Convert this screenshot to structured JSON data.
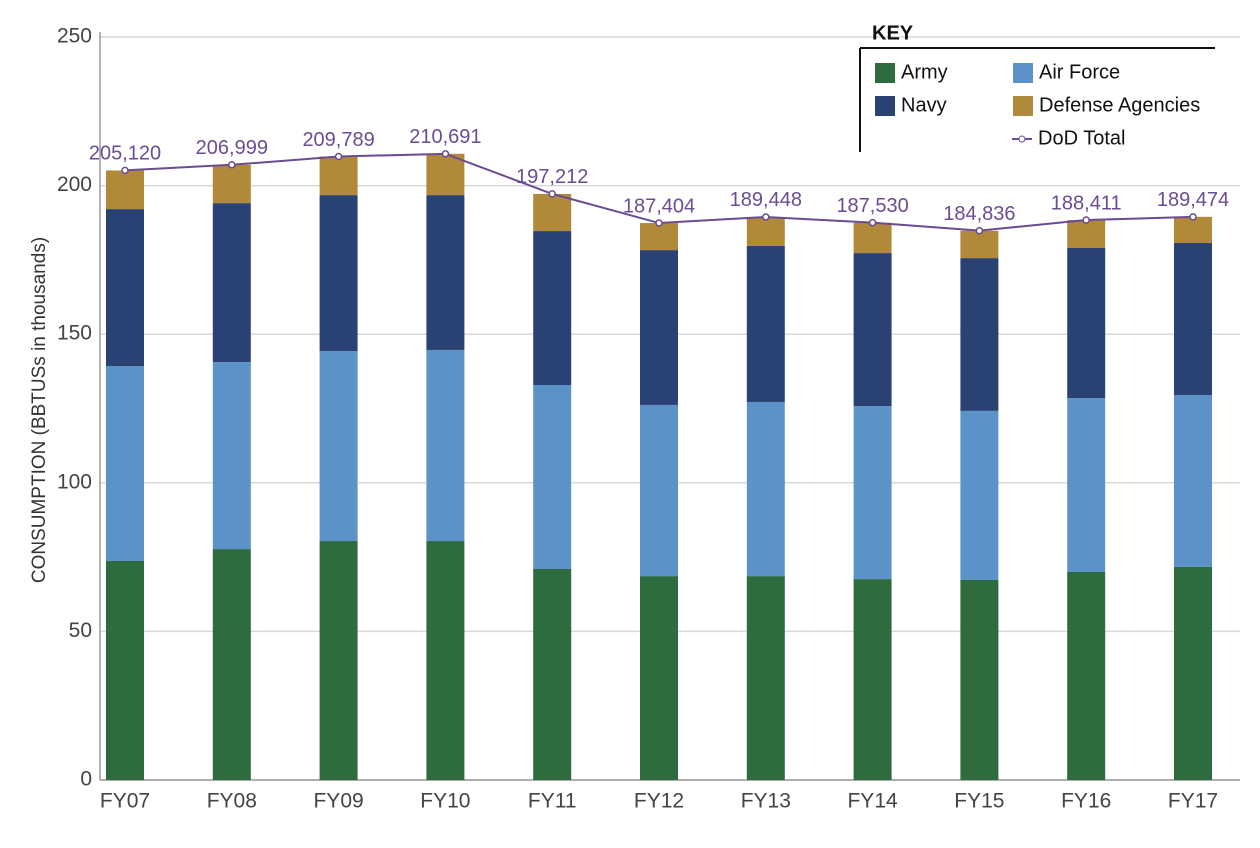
{
  "chart_data": {
    "type": "bar",
    "stacked": true,
    "ylabel": "CONSUMPTION  (BBTUSs in thousands)",
    "legend_title": "KEY",
    "categories": [
      "FY07",
      "FY08",
      "FY09",
      "FY10",
      "FY11",
      "FY12",
      "FY13",
      "FY14",
      "FY15",
      "FY16",
      "FY17"
    ],
    "series": [
      {
        "name": "Army",
        "color": "#2e6b3e",
        "values": [
          73.7,
          77.7,
          80.4,
          80.4,
          71.0,
          68.6,
          68.6,
          67.6,
          67.3,
          70.0,
          71.7
        ]
      },
      {
        "name": "Air Force",
        "color": "#5b93c8",
        "values": [
          65.6,
          62.9,
          63.9,
          64.3,
          61.9,
          57.6,
          58.6,
          58.2,
          56.9,
          58.5,
          57.8
        ]
      },
      {
        "name": "Navy",
        "color": "#2a4273",
        "values": [
          52.8,
          53.5,
          52.5,
          52.1,
          51.8,
          52.1,
          52.5,
          51.5,
          51.4,
          50.5,
          51.2
        ]
      },
      {
        "name": "Defense Agencies",
        "color": "#b08a3a",
        "values": [
          13.0,
          12.9,
          13.0,
          13.9,
          12.5,
          9.1,
          9.7,
          10.2,
          9.2,
          9.4,
          8.8
        ]
      }
    ],
    "line": {
      "name": "DoD Total",
      "color": "#6a4c93",
      "values": [
        205.12,
        206.999,
        209.789,
        210.691,
        197.212,
        187.404,
        189.448,
        187.53,
        184.836,
        188.411,
        189.474
      ],
      "value_labels": [
        "205,120",
        "206,999",
        "209,789",
        "210,691",
        "197,212",
        "187,404",
        "189,448",
        "187,530",
        "184,836",
        "188,411",
        "189,474"
      ]
    },
    "ylim": [
      0,
      250
    ],
    "yticks": [
      0,
      50,
      100,
      150,
      200,
      250
    ],
    "grid": true
  }
}
